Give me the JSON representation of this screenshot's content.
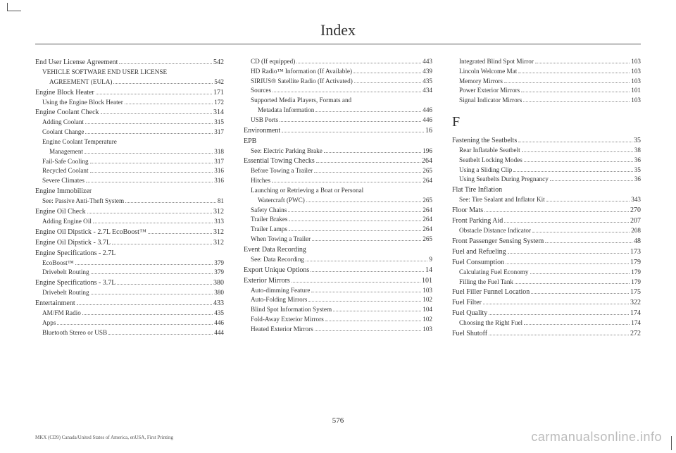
{
  "title": "Index",
  "page_number": "576",
  "footer_left": "MKX (CD9) Canada/United States of America, enUSA, First Printing",
  "watermark": "carmanualsonline.info",
  "columns": [
    {
      "entries": [
        {
          "label": "End User License Agreement",
          "page": "542",
          "level": 0
        },
        {
          "label": "VEHICLE SOFTWARE END USER LICENSE",
          "level": 1,
          "nopage": true
        },
        {
          "label": "AGREEMENT (EULA)",
          "page": "542",
          "level": 2
        },
        {
          "label": "Engine Block Heater",
          "page": "171",
          "level": 0
        },
        {
          "label": "Using the Engine Block Heater",
          "page": "172",
          "level": 1
        },
        {
          "label": "Engine Coolant Check",
          "page": "314",
          "level": 0
        },
        {
          "label": "Adding Coolant",
          "page": "315",
          "level": 1
        },
        {
          "label": "Coolant Change",
          "page": "317",
          "level": 1
        },
        {
          "label": "Engine Coolant Temperature",
          "level": 1,
          "nopage": true
        },
        {
          "label": "Management",
          "page": "318",
          "level": 2
        },
        {
          "label": "Fail-Safe Cooling",
          "page": "317",
          "level": 1
        },
        {
          "label": "Recycled Coolant",
          "page": "316",
          "level": 1
        },
        {
          "label": "Severe Climates",
          "page": "316",
          "level": 1
        },
        {
          "label": "Engine Immobilizer",
          "level": 0,
          "nopage": true
        },
        {
          "label": "See: Passive Anti-Theft System",
          "page": "81",
          "level": 1
        },
        {
          "label": "Engine Oil Check",
          "page": "312",
          "level": 0
        },
        {
          "label": "Adding Engine Oil",
          "page": "313",
          "level": 1
        },
        {
          "label": "Engine Oil Dipstick - 2.7L EcoBoost™",
          "page": "312",
          "level": 0
        },
        {
          "label": "Engine Oil Dipstick - 3.7L",
          "page": "312",
          "level": 0
        },
        {
          "label": "Engine Specifications - 2.7L",
          "level": 0,
          "nopage": true
        },
        {
          "label": "EcoBoost™",
          "page": "379",
          "level": 1
        },
        {
          "label": "Drivebelt Routing",
          "page": "379",
          "level": 1
        },
        {
          "label": "Engine Specifications - 3.7L",
          "page": "380",
          "level": 0
        },
        {
          "label": "Drivebelt Routing",
          "page": "380",
          "level": 1
        },
        {
          "label": "Entertainment",
          "page": "433",
          "level": 0
        },
        {
          "label": "AM/FM Radio",
          "page": "435",
          "level": 1
        },
        {
          "label": "Apps",
          "page": "446",
          "level": 1
        },
        {
          "label": "Bluetooth Stereo or USB",
          "page": "444",
          "level": 1
        }
      ]
    },
    {
      "entries": [
        {
          "label": "CD (If equipped)",
          "page": "443",
          "level": 1
        },
        {
          "label": "HD Radio™ Information (If Available)",
          "page": "439",
          "level": 1
        },
        {
          "label": "SIRIUS® Satellite Radio (If Activated)",
          "page": "435",
          "level": 1
        },
        {
          "label": "Sources",
          "page": "434",
          "level": 1
        },
        {
          "label": "Supported Media Players, Formats and",
          "level": 1,
          "nopage": true
        },
        {
          "label": "Metadata Information",
          "page": "446",
          "level": 2
        },
        {
          "label": "USB Ports",
          "page": "446",
          "level": 1
        },
        {
          "label": "Environment",
          "page": "16",
          "level": 0
        },
        {
          "label": "EPB",
          "level": 0,
          "nopage": true
        },
        {
          "label": "See: Electric Parking Brake",
          "page": "196",
          "level": 1
        },
        {
          "label": "Essential Towing Checks",
          "page": "264",
          "level": 0
        },
        {
          "label": "Before Towing a Trailer",
          "page": "265",
          "level": 1
        },
        {
          "label": "Hitches",
          "page": "264",
          "level": 1
        },
        {
          "label": "Launching or Retrieving a Boat or Personal",
          "level": 1,
          "nopage": true
        },
        {
          "label": "Watercraft (PWC)",
          "page": "265",
          "level": 2
        },
        {
          "label": "Safety Chains",
          "page": "264",
          "level": 1
        },
        {
          "label": "Trailer Brakes",
          "page": "264",
          "level": 1
        },
        {
          "label": "Trailer Lamps",
          "page": "264",
          "level": 1
        },
        {
          "label": "When Towing a Trailer",
          "page": "265",
          "level": 1
        },
        {
          "label": "Event Data Recording",
          "level": 0,
          "nopage": true
        },
        {
          "label": "See: Data Recording",
          "page": "9",
          "level": 1
        },
        {
          "label": "Export Unique Options",
          "page": "14",
          "level": 0
        },
        {
          "label": "Exterior Mirrors",
          "page": "101",
          "level": 0
        },
        {
          "label": "Auto-dimming Feature",
          "page": "103",
          "level": 1
        },
        {
          "label": "Auto-Folding Mirrors",
          "page": "102",
          "level": 1
        },
        {
          "label": "Blind Spot Information System",
          "page": "104",
          "level": 1
        },
        {
          "label": "Fold-Away Exterior Mirrors",
          "page": "102",
          "level": 1
        },
        {
          "label": "Heated Exterior Mirrors",
          "page": "103",
          "level": 1
        }
      ]
    },
    {
      "entries": [
        {
          "label": "Integrated Blind Spot Mirror",
          "page": "103",
          "level": 1
        },
        {
          "label": "Lincoln Welcome Mat",
          "page": "103",
          "level": 1
        },
        {
          "label": "Memory Mirrors",
          "page": "103",
          "level": 1
        },
        {
          "label": "Power Exterior Mirrors",
          "page": "101",
          "level": 1
        },
        {
          "label": "Signal Indicator Mirrors",
          "page": "103",
          "level": 1
        },
        {
          "section": "F"
        },
        {
          "label": "Fastening the Seatbelts",
          "page": "35",
          "level": 0
        },
        {
          "label": "Rear Inflatable Seatbelt",
          "page": "38",
          "level": 1
        },
        {
          "label": "Seatbelt Locking Modes",
          "page": "36",
          "level": 1
        },
        {
          "label": "Using a Sliding Clip",
          "page": "35",
          "level": 1
        },
        {
          "label": "Using Seatbelts During Pregnancy",
          "page": "36",
          "level": 1
        },
        {
          "label": "Flat Tire Inflation",
          "level": 0,
          "nopage": true
        },
        {
          "label": "See: Tire Sealant and Inflator Kit",
          "page": "343",
          "level": 1
        },
        {
          "label": "Floor Mats",
          "page": "270",
          "level": 0
        },
        {
          "label": "Front Parking Aid",
          "page": "207",
          "level": 0
        },
        {
          "label": "Obstacle Distance Indicator",
          "page": "208",
          "level": 1
        },
        {
          "label": "Front Passenger Sensing System",
          "page": "48",
          "level": 0
        },
        {
          "label": "Fuel and Refueling",
          "page": "173",
          "level": 0
        },
        {
          "label": "Fuel Consumption",
          "page": "179",
          "level": 0
        },
        {
          "label": "Calculating Fuel Economy",
          "page": "179",
          "level": 1
        },
        {
          "label": "Filling the Fuel Tank",
          "page": "179",
          "level": 1
        },
        {
          "label": "Fuel Filler Funnel Location",
          "page": "175",
          "level": 0
        },
        {
          "label": "Fuel Filter",
          "page": "322",
          "level": 0
        },
        {
          "label": "Fuel Quality",
          "page": "174",
          "level": 0
        },
        {
          "label": "Choosing the Right Fuel",
          "page": "174",
          "level": 1
        },
        {
          "label": "Fuel Shutoff",
          "page": "272",
          "level": 0
        }
      ]
    }
  ]
}
